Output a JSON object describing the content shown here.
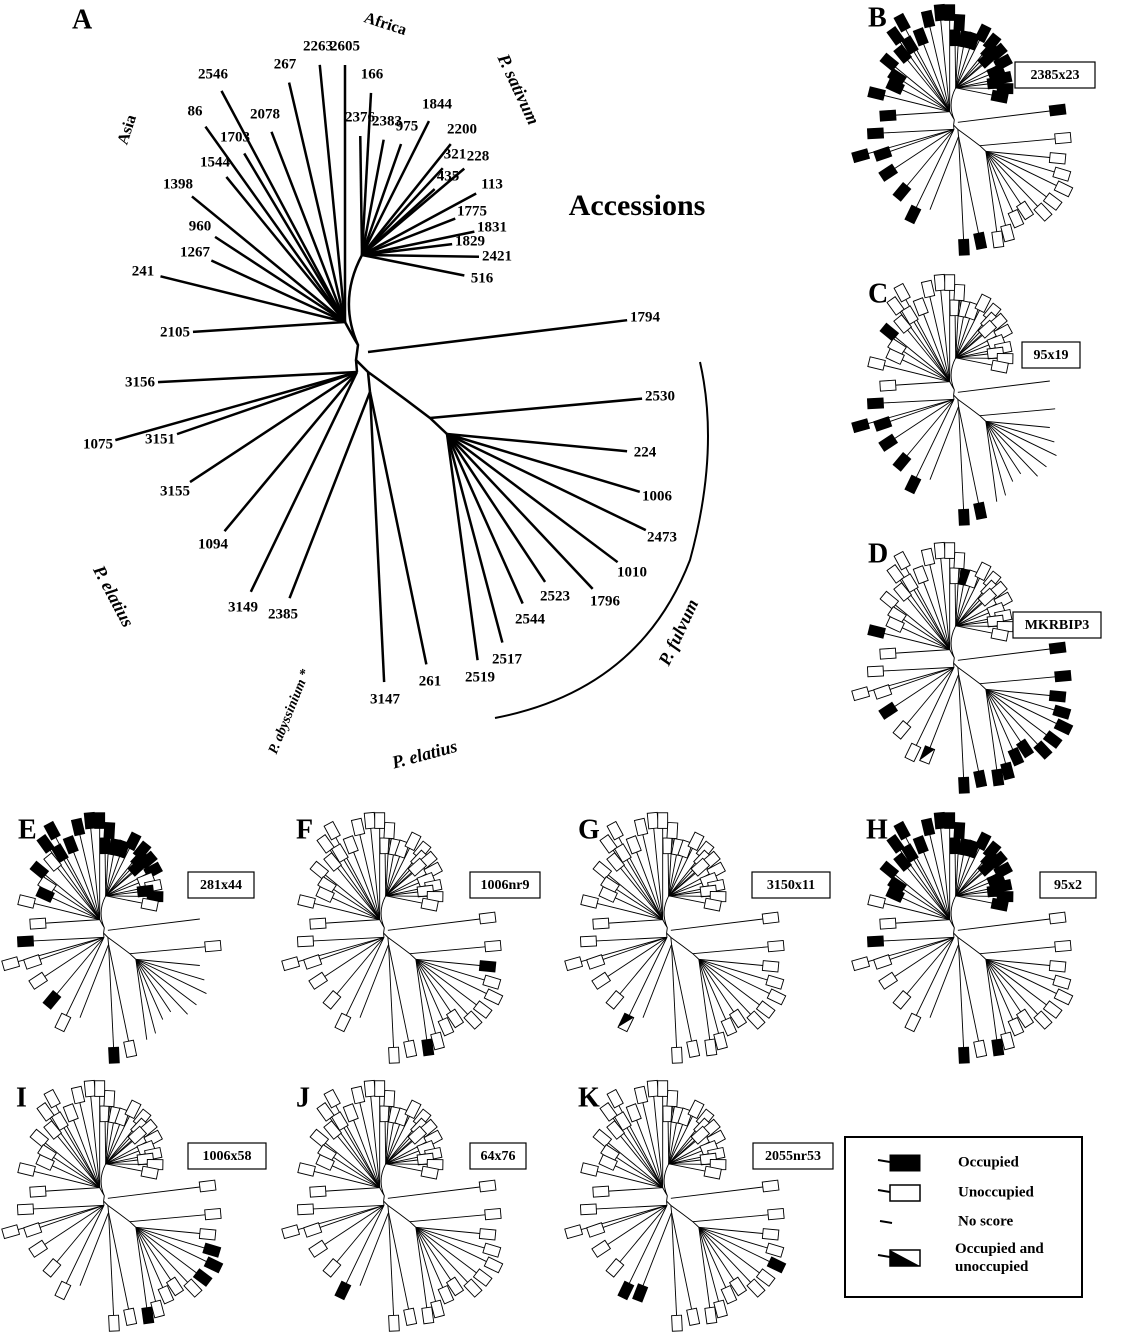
{
  "main": {
    "letter": "A",
    "title": "Accessions",
    "leaves": [
      "2546",
      "86",
      "1703",
      "2078",
      "267",
      "2263",
      "2605",
      "2376",
      "166",
      "2383",
      "975",
      "1844",
      "2200",
      "321",
      "228",
      "435",
      "113",
      "1775",
      "1831",
      "1829",
      "2421",
      "516",
      "1398",
      "1544",
      "960",
      "1267",
      "241",
      "2105",
      "3156",
      "1075",
      "3151",
      "3155",
      "1094",
      "3149",
      "2385",
      "3147",
      "261",
      "2519",
      "2517",
      "2544",
      "2523",
      "1796",
      "1010",
      "2473",
      "1006",
      "224",
      "2530",
      "1794"
    ],
    "regions": [
      "Asia",
      "Africa",
      "P. sativum",
      "P. elatius",
      "P. abyssinium *",
      "P. elatius",
      "P. fulvum"
    ]
  },
  "panels": [
    {
      "letter": "B",
      "marker": "2385x23"
    },
    {
      "letter": "C",
      "marker": "95x19"
    },
    {
      "letter": "D",
      "marker": "MKRBIP3"
    },
    {
      "letter": "E",
      "marker": "281x44"
    },
    {
      "letter": "F",
      "marker": "1006nr9"
    },
    {
      "letter": "G",
      "marker": "3150x11"
    },
    {
      "letter": "H",
      "marker": "95x2"
    },
    {
      "letter": "I",
      "marker": "1006x58"
    },
    {
      "letter": "J",
      "marker": "64x76"
    },
    {
      "letter": "K",
      "marker": "2055nr53"
    }
  ],
  "legend": {
    "items": [
      "Occupied",
      "Unoccupied",
      "No score",
      "Occupied and unoccupied"
    ]
  }
}
